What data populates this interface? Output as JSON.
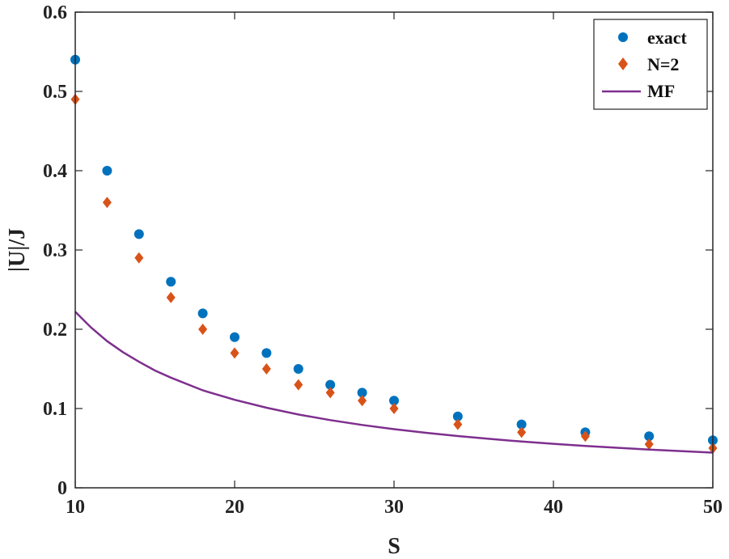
{
  "chart_data": {
    "type": "scatter",
    "xlabel": "S",
    "ylabel": "|U|/J",
    "xlim": [
      10,
      50
    ],
    "ylim": [
      0,
      0.6
    ],
    "xticks": [
      10,
      20,
      30,
      40,
      50
    ],
    "yticks": [
      0,
      0.1,
      0.2,
      0.3,
      0.4,
      0.5,
      0.6
    ],
    "xtick_labels": [
      "10",
      "20",
      "30",
      "40",
      "50"
    ],
    "ytick_labels": [
      "0",
      "0.1",
      "0.2",
      "0.3",
      "0.4",
      "0.5",
      "0.6"
    ],
    "grid": false,
    "legend_position": "top-right",
    "series": [
      {
        "name": "exact",
        "kind": "markers",
        "marker": "circle",
        "color": "#0072BD",
        "x": [
          10,
          12,
          14,
          16,
          18,
          20,
          22,
          24,
          26,
          28,
          30,
          34,
          38,
          42,
          46,
          50
        ],
        "y": [
          0.54,
          0.4,
          0.32,
          0.26,
          0.22,
          0.19,
          0.17,
          0.15,
          0.13,
          0.12,
          0.11,
          0.09,
          0.08,
          0.07,
          0.065,
          0.06
        ]
      },
      {
        "name": "N=2",
        "kind": "markers",
        "marker": "diamond",
        "color": "#D95319",
        "x": [
          10,
          12,
          14,
          16,
          18,
          20,
          22,
          24,
          26,
          28,
          30,
          34,
          38,
          42,
          46,
          50
        ],
        "y": [
          0.49,
          0.36,
          0.29,
          0.24,
          0.2,
          0.17,
          0.15,
          0.13,
          0.12,
          0.11,
          0.1,
          0.08,
          0.07,
          0.065,
          0.055,
          0.05
        ]
      },
      {
        "name": "MF",
        "kind": "line",
        "color": "#7E2F8E",
        "x": [
          10,
          11,
          12,
          13,
          14,
          15,
          16,
          18,
          20,
          22,
          24,
          26,
          28,
          30,
          32,
          34,
          36,
          38,
          40,
          42,
          44,
          46,
          48,
          50
        ],
        "y": [
          0.222,
          0.202,
          0.185,
          0.171,
          0.159,
          0.148,
          0.139,
          0.123,
          0.111,
          0.101,
          0.0925,
          0.0854,
          0.0793,
          0.074,
          0.0694,
          0.0653,
          0.0617,
          0.0584,
          0.0555,
          0.0529,
          0.0505,
          0.0483,
          0.0463,
          0.0444
        ]
      }
    ]
  }
}
